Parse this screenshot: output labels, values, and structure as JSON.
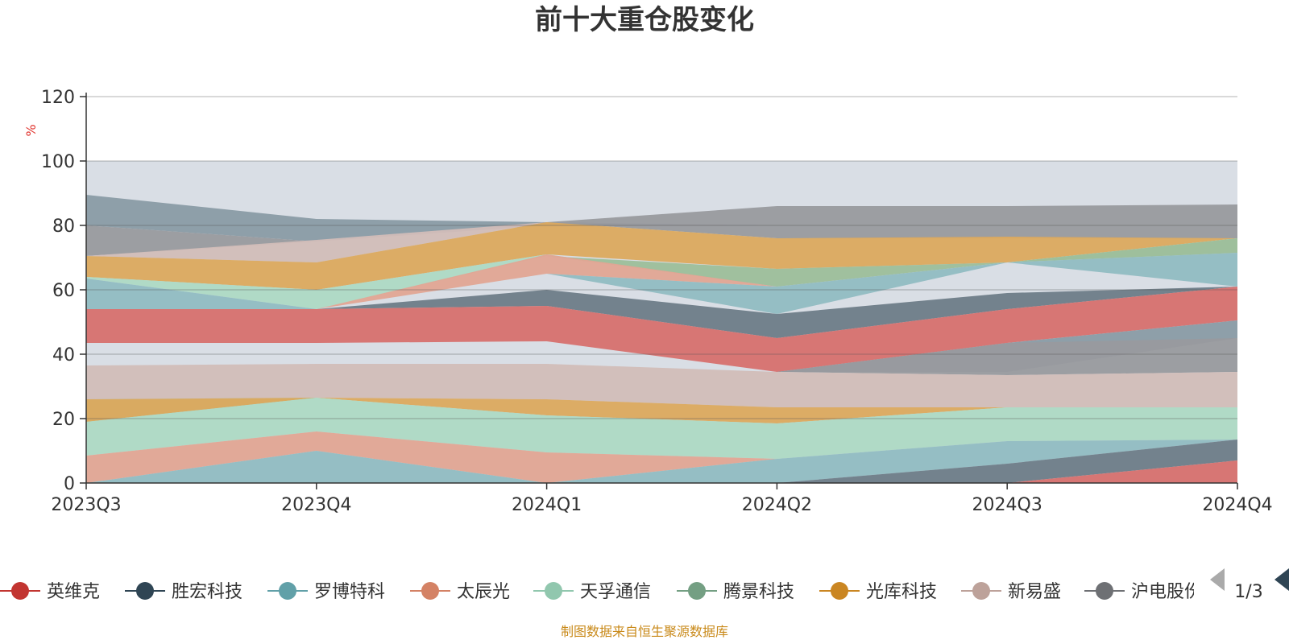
{
  "title": "前十大重仓股变化",
  "source": "制图数据来自恒生聚源数据库",
  "legend_page": "1/3",
  "legend_items": [
    {
      "name": "英维克",
      "color": "#c23531"
    },
    {
      "name": "胜宏科技",
      "color": "#2f4554"
    },
    {
      "name": "罗博特科",
      "color": "#61a0a8"
    },
    {
      "name": "太辰光",
      "color": "#d48265"
    },
    {
      "name": "天孚通信",
      "color": "#91c7ae"
    },
    {
      "name": "腾景科技",
      "color": "#749f83"
    },
    {
      "name": "光库科技",
      "color": "#ca8622"
    },
    {
      "name": "新易盛",
      "color": "#bda29a"
    },
    {
      "name": "沪电股份",
      "color": "#6e7074"
    }
  ],
  "chart_data": {
    "type": "area",
    "stacked": true,
    "x": [
      "2023Q3",
      "2023Q4",
      "2024Q1",
      "2024Q2",
      "2024Q3",
      "2024Q4"
    ],
    "ylabel": "%",
    "ylim": [
      0,
      120
    ],
    "yticks": [
      0,
      20,
      40,
      60,
      80,
      100,
      120
    ],
    "grid": true,
    "legend_position": "bottom",
    "bands": [
      {
        "color": "#d7dce4",
        "lower": [
          0,
          0,
          0,
          0,
          0,
          0
        ],
        "upper": [
          100,
          100,
          100,
          100,
          100,
          100
        ]
      },
      {
        "color": "#8a9ba5",
        "lower": [
          80,
          75,
          80,
          80,
          80,
          80
        ],
        "upper": [
          89.5,
          82,
          81,
          80,
          80,
          80
        ]
      },
      {
        "color": "#999a9e",
        "lower": [
          70.5,
          75,
          81,
          76,
          76,
          76
        ],
        "upper": [
          80,
          75,
          81,
          86,
          86,
          86.5
        ]
      },
      {
        "color": "#d2bdb8",
        "lower": [
          70.5,
          68.5,
          81,
          76,
          76,
          76
        ],
        "upper": [
          70.5,
          75.5,
          81,
          76,
          76,
          76
        ]
      },
      {
        "color": "#dca95e",
        "lower": [
          64,
          60,
          71,
          66.5,
          68.5,
          76
        ],
        "upper": [
          70.5,
          68.5,
          81,
          76,
          76.5,
          76
        ]
      },
      {
        "color": "#aed9c4",
        "lower": [
          63.5,
          54,
          70.5,
          61,
          68.5,
          71.5
        ],
        "upper": [
          64,
          60,
          71,
          61,
          68.5,
          76
        ]
      },
      {
        "color": "#9dbe9a",
        "lower": [
          63.5,
          54,
          70.5,
          61,
          68.5,
          71.5
        ],
        "upper": [
          63.5,
          54,
          70.5,
          66.5,
          68.5,
          76
        ]
      },
      {
        "color": "#e2a593",
        "lower": [
          63.5,
          54,
          65,
          61,
          68.5,
          71.5
        ],
        "upper": [
          63.5,
          54,
          71,
          61,
          68.5,
          71.5
        ]
      },
      {
        "color": "#91bcc2",
        "lower": [
          54,
          54,
          65,
          52.5,
          68.5,
          61
        ],
        "upper": [
          63.5,
          54,
          65,
          61,
          68.5,
          71.5
        ]
      },
      {
        "color": "#6e7c88",
        "lower": [
          54,
          54,
          55,
          45,
          54,
          61
        ],
        "upper": [
          54,
          54,
          60,
          52.5,
          59,
          61
        ]
      },
      {
        "color": "#d7706e",
        "lower": [
          43.5,
          43.5,
          44,
          34.5,
          43.5,
          50.5
        ],
        "upper": [
          54,
          54,
          55,
          45,
          54,
          61
        ]
      },
      {
        "color": "#8a9ba5",
        "lower": [
          34.5,
          34.5,
          34.5,
          34.5,
          34.5,
          45
        ],
        "upper": [
          34.5,
          34.5,
          34.5,
          34.5,
          43.5,
          50.5
        ]
      },
      {
        "color": "#999a9e",
        "lower": [
          34.5,
          34.5,
          34.5,
          34.5,
          33.5,
          34.5
        ],
        "upper": [
          34.5,
          34.5,
          34.5,
          34.5,
          43.5,
          45
        ]
      },
      {
        "color": "#d2bdb8",
        "lower": [
          26,
          26.5,
          26,
          23.5,
          23.5,
          23.5
        ],
        "upper": [
          36.5,
          37,
          37,
          34.5,
          33.5,
          34.5
        ]
      },
      {
        "color": "#9dbe9a",
        "lower": [
          19,
          26.5,
          26,
          23.5,
          23.5,
          23.5
        ],
        "upper": [
          26,
          26.5,
          26,
          23.5,
          23.5,
          23.5
        ]
      },
      {
        "color": "#dca95e",
        "lower": [
          19,
          26.5,
          21,
          18.5,
          23.5,
          23.5
        ],
        "upper": [
          26,
          26.5,
          26,
          23.5,
          23.5,
          23.5
        ]
      },
      {
        "color": "#aed9c4",
        "lower": [
          8.5,
          16,
          9.5,
          7.5,
          13,
          13.5
        ],
        "upper": [
          19,
          26.5,
          21,
          18.5,
          23.5,
          23.5
        ]
      },
      {
        "color": "#e2a593",
        "lower": [
          0,
          10,
          0,
          7.5,
          13,
          13.5
        ],
        "upper": [
          8.5,
          16,
          9.5,
          7.5,
          13,
          13.5
        ]
      },
      {
        "color": "#91bcc2",
        "lower": [
          0,
          0,
          0,
          0,
          6,
          13.5
        ],
        "upper": [
          0,
          10,
          0,
          7.5,
          13,
          13.5
        ]
      },
      {
        "color": "#6e7c88",
        "lower": [
          0,
          0,
          0,
          0,
          0,
          7
        ],
        "upper": [
          0,
          0,
          0,
          0,
          6,
          13.5
        ]
      },
      {
        "color": "#d7706e",
        "lower": [
          0,
          0,
          0,
          0,
          0,
          0
        ],
        "upper": [
          0,
          0,
          0,
          0,
          0,
          7
        ]
      }
    ]
  }
}
